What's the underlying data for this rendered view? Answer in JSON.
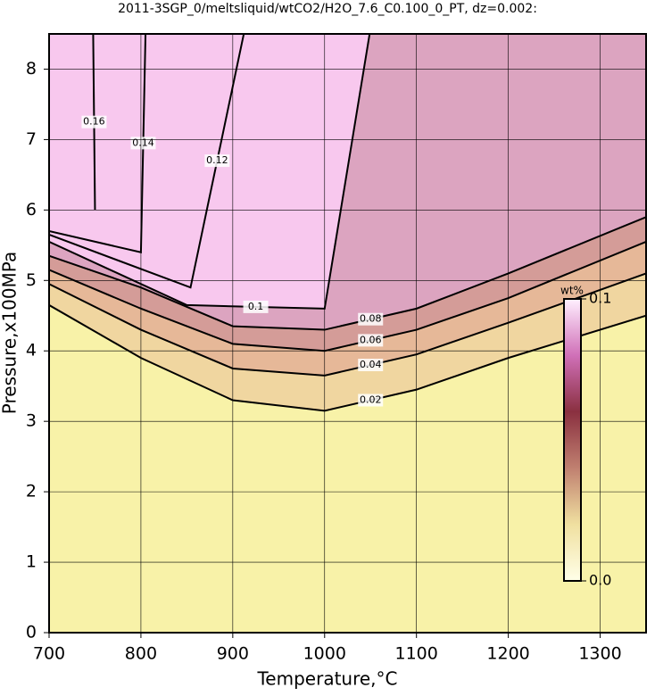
{
  "chart_data": {
    "type": "contour",
    "title": "2011-3SGP_0/meltsliquid/wtCO2/H2O_7.6_C0.100_0_PT, dz=0.002:",
    "x_label": "Temperature,°C",
    "y_label": "Pressure,x100MPa",
    "xlim": [
      700,
      1350
    ],
    "ylim": [
      0,
      8.5
    ],
    "xticks": [
      700,
      800,
      900,
      1000,
      1100,
      1200,
      1300
    ],
    "yticks": [
      0,
      1,
      2,
      3,
      4,
      5,
      6,
      7,
      8
    ],
    "grid": true,
    "background": "#f8f2a8",
    "contours": [
      {
        "level": 0.02,
        "fill": "#f0d6a0",
        "x": [
          700,
          800,
          900,
          1000,
          1100,
          1200,
          1350
        ],
        "y": [
          4.65,
          3.9,
          3.3,
          3.15,
          3.45,
          3.9,
          4.5
        ]
      },
      {
        "level": 0.04,
        "fill": "#e6b898",
        "x": [
          700,
          800,
          900,
          1000,
          1100,
          1200,
          1350
        ],
        "y": [
          4.95,
          4.3,
          3.75,
          3.65,
          3.95,
          4.4,
          5.1
        ]
      },
      {
        "level": 0.06,
        "fill": "#d49c98",
        "x": [
          700,
          800,
          900,
          1000,
          1100,
          1200,
          1350
        ],
        "y": [
          5.15,
          4.6,
          4.1,
          4.0,
          4.3,
          4.75,
          5.55
        ]
      },
      {
        "level": 0.08,
        "fill": "#dca4c0",
        "x": [
          700,
          800,
          900,
          1000,
          1100,
          1200,
          1350
        ],
        "y": [
          5.35,
          4.9,
          4.35,
          4.3,
          4.6,
          5.1,
          5.9
        ]
      },
      {
        "level": 0.1,
        "fill": "#f8c8ee",
        "x": [
          700,
          850,
          1000,
          1049
        ],
        "y": [
          5.55,
          4.65,
          4.6,
          8.5
        ]
      },
      {
        "level": 0.12,
        "x": [
          700,
          854,
          912
        ],
        "y": [
          5.65,
          4.9,
          8.5
        ]
      },
      {
        "level": 0.14,
        "x": [
          700,
          800,
          805
        ],
        "y": [
          5.7,
          5.4,
          8.5
        ]
      },
      {
        "level": 0.16,
        "x": [
          750,
          748
        ],
        "y": [
          6.0,
          8.5
        ]
      }
    ],
    "colorbar": {
      "label": "wt%",
      "lim": [
        0,
        0.1
      ],
      "ticks": [
        {
          "value": 0,
          "label": "0.0"
        },
        0.1
      ],
      "colors": [
        "#ffffe8",
        "#f0e0a0",
        "#c08070",
        "#8a3040",
        "#d070b8",
        "#fff0ff"
      ]
    }
  }
}
